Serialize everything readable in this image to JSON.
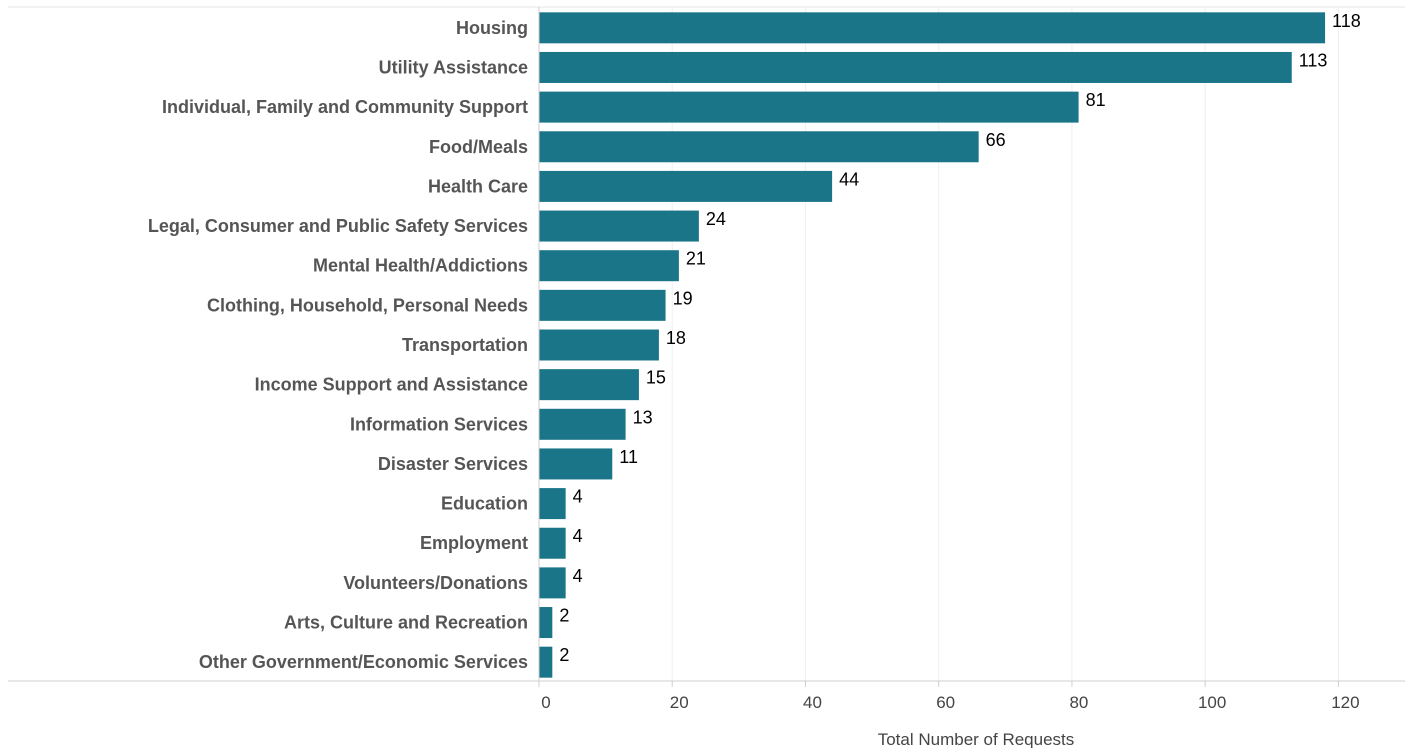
{
  "chart_data": {
    "type": "bar",
    "orientation": "horizontal",
    "categories": [
      "Housing",
      "Utility Assistance",
      "Individual, Family and Community Support",
      "Food/Meals",
      "Health Care",
      "Legal, Consumer and Public Safety Services",
      "Mental Health/Addictions",
      "Clothing, Household, Personal Needs",
      "Transportation",
      "Income Support and Assistance",
      "Information Services",
      "Disaster Services",
      "Education",
      "Employment",
      "Volunteers/Donations",
      "Arts, Culture and Recreation",
      "Other Government/Economic Services"
    ],
    "values": [
      118,
      113,
      81,
      66,
      44,
      24,
      21,
      19,
      18,
      15,
      13,
      11,
      4,
      4,
      4,
      2,
      2
    ],
    "xlabel": "Total Number of Requests",
    "ylabel": "",
    "xlim": [
      0,
      130
    ],
    "xticks": [
      0,
      20,
      40,
      60,
      80,
      100,
      120
    ],
    "grid": true,
    "data_labels": true,
    "bar_color": "#1b7589"
  }
}
